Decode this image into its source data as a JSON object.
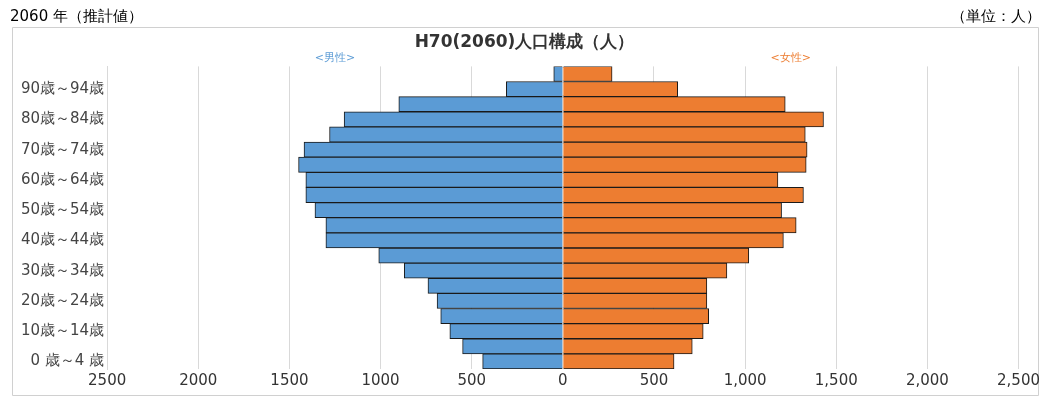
{
  "chart_data": {
    "type": "bar",
    "orientation": "horizontal",
    "stacked": true,
    "title": "H70(2060)人口構成（人）",
    "annotations": [
      "2060 年（推計値）",
      "（単位：人）"
    ],
    "categories": [
      null,
      "90歳～94歳",
      null,
      "80歳～84歳",
      null,
      "70歳～74歳",
      null,
      "60歳～64歳",
      null,
      "50歳～54歳",
      null,
      "40歳～44歳",
      null,
      "30歳～34歳",
      null,
      "20歳～24歳",
      null,
      "10歳～14歳",
      null,
      "0 歳～4 歳"
    ],
    "series": [
      {
        "name": "<男性>",
        "color": "#5b9bd5",
        "values": [
          -50,
          -310,
          -900,
          -1200,
          -1280,
          -1420,
          -1450,
          -1410,
          -1410,
          -1360,
          -1300,
          -1300,
          -1010,
          -870,
          -740,
          -690,
          -670,
          -620,
          -550,
          -440
        ]
      },
      {
        "name": "<女性>",
        "color": "#ed7d31",
        "values": [
          270,
          630,
          1220,
          1430,
          1330,
          1340,
          1335,
          1180,
          1320,
          1200,
          1280,
          1210,
          1020,
          900,
          790,
          790,
          800,
          770,
          710,
          610
        ]
      }
    ],
    "xlim": [
      -2500,
      2500
    ],
    "xticks": [
      {
        "value": -2500,
        "label": "2500"
      },
      {
        "value": -2000,
        "label": "2000"
      },
      {
        "value": -1500,
        "label": "1500"
      },
      {
        "value": -1000,
        "label": "1000"
      },
      {
        "value": -500,
        "label": "500"
      },
      0,
      500,
      {
        "value": 1000,
        "label": "1,000"
      },
      {
        "value": 1500,
        "label": "1,500"
      },
      {
        "value": 2000,
        "label": "2,000"
      },
      {
        "value": 2500,
        "label": "2,500"
      }
    ],
    "grid": "x"
  }
}
